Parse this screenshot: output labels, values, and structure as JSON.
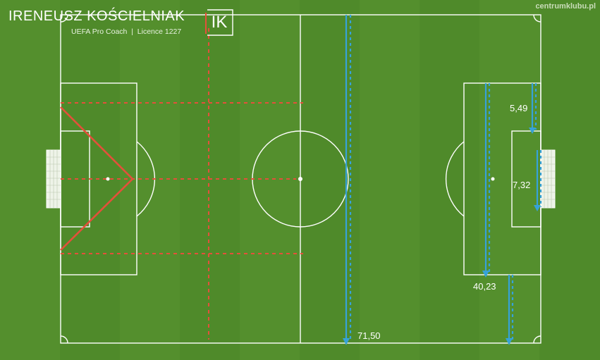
{
  "header": {
    "title": "IRENEUSZ KOŚCIELNIAK",
    "subtitle": "UEFA Pro Coach  |  Licence 1227",
    "logo": "IK",
    "brand": "centrumklubu.pl"
  },
  "measurements": {
    "goal_area_depth": "5,49",
    "goal_width": "7,32",
    "penalty_area_width": "40,23",
    "line_71": "71,50"
  },
  "colors": {
    "pitch": "#4f8a2a",
    "lines": "#ffffff",
    "red_markings": "#e4503a",
    "blue_markings": "#36a2d9"
  }
}
